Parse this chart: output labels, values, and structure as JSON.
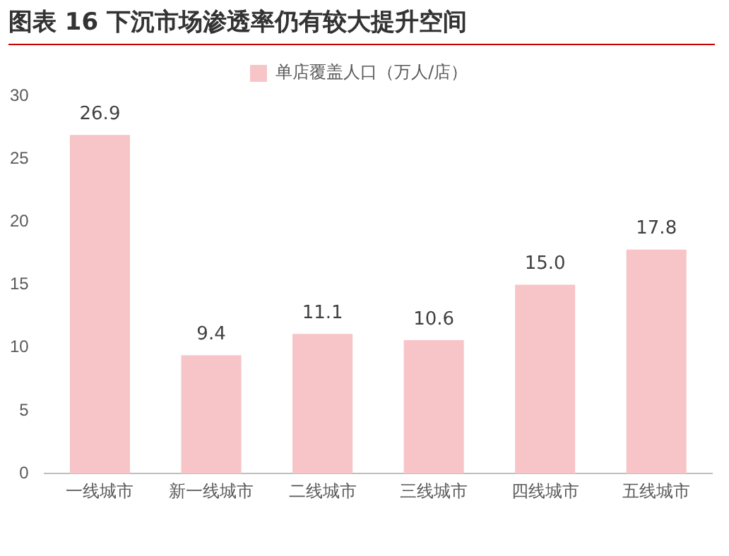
{
  "chart_data": {
    "type": "bar",
    "title": "图表 16 下沉市场渗透率仍有较大提升空间",
    "categories": [
      "一线城市",
      "新一线城市",
      "二线城市",
      "三线城市",
      "四线城市",
      "五线城市"
    ],
    "series": [
      {
        "name": "单店覆盖人口（万人/店）",
        "color": "#f7c5c7",
        "values": [
          26.9,
          9.4,
          11.1,
          10.6,
          15.0,
          17.8
        ],
        "value_labels": [
          "26.9",
          "9.4",
          "11.1",
          "10.6",
          "15.0",
          "17.8"
        ]
      }
    ],
    "ylim": [
      0,
      30
    ],
    "yticks": [
      0,
      5,
      10,
      15,
      20,
      25,
      30
    ],
    "grid": false,
    "legend": "top"
  }
}
